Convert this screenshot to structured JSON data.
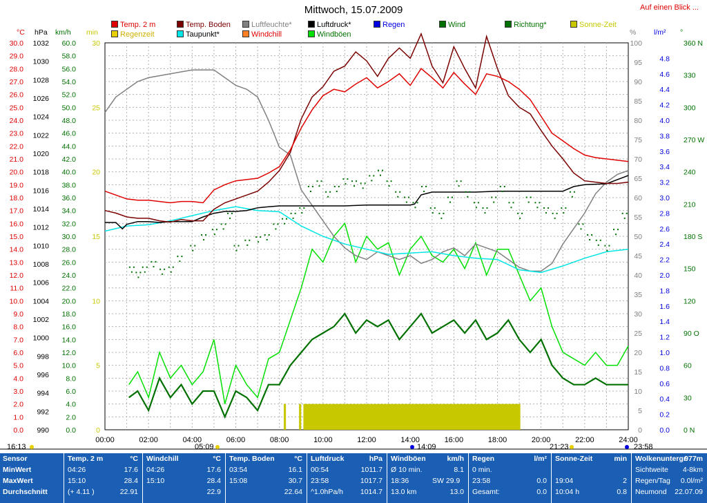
{
  "title": "Mittwoch, 15.07.2009",
  "link_label": "Auf einen Blick ...",
  "legend": [
    {
      "label": "Temp. 2 m",
      "color": "#e00000"
    },
    {
      "label": "Regenzeit",
      "color": "#e8d000"
    },
    {
      "label": "Temp. Boden",
      "color": "#7a0000"
    },
    {
      "label": "Taupunkt*",
      "color": "#00e5e5"
    },
    {
      "label": "Luftfeuchte*",
      "color": "#808080"
    },
    {
      "label": "Windchill",
      "color": "#ff7f27"
    },
    {
      "label": "Luftdruck*",
      "color": "#000000"
    },
    {
      "label": "Windböen",
      "color": "#00e000"
    },
    {
      "label": "Regen",
      "color": "#0000e0"
    },
    {
      "label": "Wind",
      "color": "#007000"
    },
    {
      "label": "Richtung*",
      "color": "#007000"
    },
    {
      "label": "Sonne-Zeit",
      "color": "#c8c800"
    }
  ],
  "axis_headers": {
    "celsius": "°C",
    "hpa": "hPa",
    "kmh": "km/h",
    "min": "min",
    "percent": "%",
    "lm2": "l/m²",
    "deg": "°"
  },
  "times": {
    "sunrise_left": "16:13",
    "sunrise": "05:09",
    "noon": "14:09",
    "sunset": "21:23",
    "moonset": "23:58"
  },
  "chart_data": {
    "type": "line",
    "title": "Mittwoch, 15.07.2009",
    "x_ticks": [
      "00:00",
      "02:00",
      "04:00",
      "06:00",
      "08:00",
      "10:00",
      "12:00",
      "14:00",
      "16:00",
      "18:00",
      "20:00",
      "22:00",
      "24:00"
    ],
    "axes": {
      "celsius": {
        "min": 0,
        "max": 30,
        "ticks": [
          "30.0",
          "29.0",
          "28.0",
          "27.0",
          "26.0",
          "25.0",
          "24.0",
          "23.0",
          "22.0",
          "21.0",
          "20.0",
          "19.0",
          "18.0",
          "17.0",
          "16.0",
          "15.0",
          "14.0",
          "13.0",
          "12.0",
          "11.0",
          "10.0",
          "9.0",
          "8.0",
          "7.0",
          "6.0",
          "5.0",
          "4.0",
          "3.0",
          "2.0",
          "1.0",
          "0.0"
        ]
      },
      "hpa": {
        "min": 990,
        "max": 1032,
        "ticks": [
          "1032",
          "1030",
          "1028",
          "1026",
          "1024",
          "1022",
          "1020",
          "1018",
          "1016",
          "1014",
          "1012",
          "1010",
          "1008",
          "1006",
          "1004",
          "1002",
          "1000",
          "998",
          "996",
          "994",
          "992",
          "990"
        ]
      },
      "kmh": {
        "min": 0,
        "max": 60,
        "ticks": [
          "60.0",
          "58.0",
          "56.0",
          "54.0",
          "52.0",
          "50.0",
          "48.0",
          "46.0",
          "44.0",
          "42.0",
          "40.0",
          "38.0",
          "36.0",
          "34.0",
          "32.0",
          "30.0",
          "28.0",
          "26.0",
          "24.0",
          "22.0",
          "20.0",
          "18.0",
          "16.0",
          "14.0",
          "12.0",
          "10.0",
          "8.0",
          "6.0",
          "4.0",
          "2.0",
          "0.0"
        ]
      },
      "min": {
        "min": 0,
        "max": 30,
        "ticks": [
          "30",
          "25",
          "20",
          "15",
          "10",
          "5",
          "0"
        ]
      },
      "percent": {
        "min": 0,
        "max": 100,
        "ticks": [
          "100",
          "95",
          "90",
          "85",
          "80",
          "75",
          "70",
          "65",
          "60",
          "55",
          "50",
          "45",
          "40",
          "35",
          "30",
          "25",
          "20",
          "15",
          "10",
          "5",
          "0"
        ]
      },
      "lm2": {
        "min": 0,
        "max": 5,
        "ticks": [
          "4.8",
          "4.6",
          "4.4",
          "4.2",
          "4.0",
          "3.8",
          "3.6",
          "3.4",
          "3.2",
          "3.0",
          "2.8",
          "2.6",
          "2.4",
          "2.2",
          "2.0",
          "1.8",
          "1.6",
          "1.4",
          "1.2",
          "1.0",
          "0.8",
          "0.6",
          "0.4",
          "0.2",
          "0.0"
        ]
      },
      "deg": {
        "min": 0,
        "max": 360,
        "ticks": [
          "360 N",
          "330",
          "300",
          "270 W",
          "240",
          "210",
          "180 S",
          "150",
          "120",
          "90 O",
          "60",
          "30",
          "0 N"
        ]
      }
    },
    "series": [
      {
        "name": "Temp. 2 m",
        "axis": "celsius",
        "color": "#e00000",
        "x": [
          0,
          0.5,
          1,
          1.5,
          2,
          2.5,
          3,
          3.5,
          4,
          4.5,
          5,
          5.5,
          6,
          6.5,
          7,
          7.5,
          8,
          8.5,
          9,
          9.5,
          10,
          10.5,
          11,
          11.5,
          12,
          12.5,
          13,
          13.5,
          14,
          14.5,
          15,
          15.5,
          16,
          16.5,
          17,
          17.5,
          18,
          18.5,
          19,
          19.5,
          20,
          20.5,
          21,
          21.5,
          22,
          22.5,
          23,
          23.5,
          24
        ],
        "y": [
          18.5,
          18.2,
          17.9,
          17.8,
          17.8,
          17.7,
          17.6,
          17.7,
          17.7,
          17.6,
          18.6,
          19.0,
          19.3,
          19.4,
          19.5,
          19.9,
          20.4,
          21.7,
          23.4,
          24.8,
          25.9,
          26.4,
          26.2,
          26.8,
          27.3,
          26.5,
          27.0,
          27.6,
          26.7,
          28.0,
          27.3,
          26.5,
          27.7,
          26.8,
          26.0,
          27.6,
          27.4,
          27.0,
          26.4,
          25.6,
          24.3,
          23.0,
          22.4,
          21.8,
          21.3,
          21.1,
          21.0,
          20.9,
          20.8
        ]
      },
      {
        "name": "Temp. Boden",
        "axis": "celsius",
        "color": "#7a0000",
        "x": [
          0,
          0.5,
          1,
          1.5,
          2,
          2.5,
          3,
          3.5,
          4,
          4.5,
          5,
          5.5,
          6,
          6.5,
          7,
          7.5,
          8,
          8.5,
          9,
          9.5,
          10,
          10.5,
          11,
          11.5,
          12,
          12.5,
          13,
          13.5,
          14,
          14.5,
          15,
          15.5,
          16,
          16.5,
          17,
          17.5,
          18,
          18.5,
          19,
          19.5,
          20,
          20.5,
          21,
          21.5,
          22,
          22.5,
          23,
          23.5,
          24
        ],
        "y": [
          17.0,
          16.8,
          16.5,
          16.4,
          16.4,
          16.2,
          16.1,
          16.3,
          16.2,
          16.2,
          17.1,
          17.6,
          17.9,
          18.2,
          18.5,
          19.2,
          20.1,
          21.5,
          24.1,
          25.8,
          26.6,
          27.8,
          28.2,
          29.3,
          28.6,
          27.4,
          28.8,
          29.6,
          28.8,
          30.7,
          28.2,
          26.9,
          29.7,
          28.0,
          26.5,
          30.5,
          28.0,
          25.9,
          25.0,
          24.5,
          23.2,
          22.0,
          21.0,
          19.9,
          19.3,
          19.2,
          19.1,
          19.1,
          19.2
        ]
      },
      {
        "name": "Taupunkt*",
        "axis": "celsius",
        "color": "#00e5e5",
        "x": [
          0,
          1,
          2,
          3,
          4,
          5,
          6,
          7,
          8,
          9,
          10,
          11,
          12,
          13,
          14,
          15,
          16,
          17,
          18,
          19,
          20,
          21,
          22,
          23,
          24
        ],
        "y": [
          15.4,
          15.8,
          15.9,
          16.2,
          16.6,
          17.0,
          17.3,
          17.0,
          16.9,
          15.8,
          15.0,
          14.4,
          14.0,
          13.6,
          13.7,
          13.8,
          13.5,
          13.3,
          13.2,
          12.4,
          12.2,
          12.7,
          13.3,
          13.8,
          14.0
        ]
      },
      {
        "name": "Luftfeuchte*",
        "axis": "percent",
        "color": "#808080",
        "x": [
          0,
          0.5,
          1,
          1.5,
          2,
          2.5,
          3,
          3.5,
          4,
          4.5,
          5,
          5.5,
          6,
          6.5,
          7,
          7.5,
          8,
          8.5,
          9,
          9.5,
          10,
          10.5,
          11,
          11.5,
          12,
          12.5,
          13,
          13.5,
          14,
          14.5,
          15,
          15.5,
          16,
          16.5,
          17,
          17.5,
          18,
          18.5,
          19,
          19.5,
          20,
          20.5,
          21,
          21.5,
          22,
          22.5,
          23,
          23.5,
          24
        ],
        "y": [
          82,
          86,
          88,
          90,
          91,
          91.5,
          92,
          92.5,
          93,
          93,
          93,
          91,
          89,
          88,
          86,
          80,
          73,
          71,
          62,
          58,
          54,
          50,
          47,
          45,
          44,
          46,
          45,
          44,
          45,
          43,
          44,
          46,
          47,
          45,
          48,
          47,
          46,
          44,
          42,
          41,
          41,
          43,
          48,
          52,
          56,
          61,
          64,
          66,
          67
        ]
      },
      {
        "name": "Luftdruck*",
        "axis": "hpa",
        "color": "#000000",
        "x": [
          0,
          0.5,
          0.8,
          1,
          1.5,
          2,
          2.5,
          3,
          3.5,
          4,
          4.5,
          5,
          5.5,
          6,
          6.5,
          7,
          7.5,
          8,
          8.5,
          9,
          10,
          11,
          12,
          13,
          14,
          14.2,
          14.5,
          15,
          16,
          17,
          18,
          19,
          20,
          21,
          21.5,
          22,
          23,
          24
        ],
        "y": [
          1012.5,
          1012.5,
          1011.8,
          1012.3,
          1012.6,
          1012.6,
          1012.5,
          1012.6,
          1012.6,
          1012.6,
          1013.1,
          1013.5,
          1013.7,
          1013.7,
          1013.8,
          1014.1,
          1014.2,
          1014.3,
          1014.3,
          1014.3,
          1014.3,
          1014.3,
          1014.4,
          1014.4,
          1014.4,
          1014.5,
          1015.5,
          1015.8,
          1015.8,
          1015.8,
          1015.9,
          1015.9,
          1015.9,
          1015.9,
          1016.4,
          1016.6,
          1016.7,
          1017.6
        ]
      },
      {
        "name": "Wind",
        "axis": "kmh",
        "color": "#007000",
        "x": [
          1.1,
          1.5,
          2,
          2.5,
          3,
          3.5,
          4,
          4.5,
          5,
          5.5,
          6,
          6.5,
          7,
          7.5,
          8,
          8.5,
          9,
          9.5,
          10,
          10.5,
          11,
          11.5,
          12,
          12.5,
          13,
          13.5,
          14,
          14.5,
          15,
          15.5,
          16,
          16.5,
          17,
          17.5,
          18,
          18.5,
          19,
          19.5,
          20,
          20.5,
          21,
          21.5,
          22,
          22.5,
          23,
          23.5,
          24
        ],
        "y": [
          5,
          6,
          3,
          8,
          5,
          7,
          4,
          6,
          6,
          2,
          6,
          5,
          3,
          7,
          7,
          10,
          12,
          14,
          15,
          16,
          18,
          15,
          17,
          16,
          17,
          14,
          16,
          18,
          15,
          16,
          17,
          15,
          17,
          14,
          15,
          17,
          14,
          12,
          14,
          10,
          8,
          7,
          7,
          8,
          7,
          7,
          7
        ]
      },
      {
        "name": "Windböen",
        "axis": "kmh",
        "color": "#00e000",
        "x": [
          1.1,
          1.5,
          2,
          2.5,
          3,
          3.5,
          4,
          4.5,
          5,
          5.5,
          6,
          6.5,
          7,
          7.5,
          8,
          8.5,
          9,
          9.5,
          10,
          10.5,
          11,
          11.5,
          12,
          12.5,
          13,
          13.5,
          14,
          14.5,
          15,
          15.5,
          16,
          16.5,
          17,
          17.5,
          18,
          18.5,
          19,
          19.5,
          20,
          20.5,
          21,
          21.5,
          22,
          22.5,
          23,
          23.5,
          24
        ],
        "y": [
          7,
          9,
          5,
          12,
          8,
          10,
          7,
          9,
          14,
          4,
          10,
          7,
          5,
          11,
          12,
          17,
          22,
          28,
          26,
          30,
          32,
          26,
          30,
          28,
          29,
          24,
          28,
          30,
          27,
          26,
          28,
          25,
          29,
          24,
          28,
          28,
          24,
          20,
          22,
          16,
          12,
          11,
          10,
          12,
          10,
          10,
          13
        ]
      },
      {
        "name": "Sonne-Zeit",
        "axis": "min",
        "color": "#c8c800",
        "type": "bar",
        "ranges": [
          [
            8.2,
            8.3
          ],
          [
            8.9,
            9.0
          ],
          [
            9.1,
            19.05
          ]
        ],
        "value": 2
      }
    ],
    "direction_points": {
      "axis": "deg",
      "color": "#007000",
      "x": [
        1.2,
        1.5,
        1.8,
        2.2,
        2.6,
        3.0,
        3.4,
        4.0,
        4.5,
        5.0,
        5.4,
        5.7,
        6.0,
        6.5,
        7.0,
        7.4,
        7.8,
        8.2,
        8.6,
        9.0,
        9.4,
        9.8,
        10.2,
        10.6,
        11.0,
        11.4,
        11.8,
        12.2,
        12.6,
        13.0,
        13.4,
        13.8,
        14.2,
        14.6,
        15.0,
        15.4,
        15.8,
        16.2,
        16.6,
        17.0,
        17.4,
        17.8,
        18.2,
        18.6,
        19.0,
        19.4,
        19.8,
        20.2,
        20.6,
        21.0,
        21.4,
        21.8,
        22.2,
        22.6,
        23.0,
        23.4,
        23.8
      ],
      "y": [
        150,
        145,
        150,
        155,
        148,
        150,
        160,
        170,
        180,
        185,
        190,
        200,
        170,
        175,
        178,
        180,
        190,
        195,
        200,
        205,
        225,
        230,
        220,
        225,
        232,
        230,
        228,
        235,
        240,
        230,
        220,
        215,
        210,
        225,
        205,
        200,
        215,
        230,
        220,
        210,
        205,
        215,
        225,
        210,
        200,
        215,
        210,
        205,
        200,
        205,
        220,
        190,
        180,
        175,
        170,
        185,
        200
      ]
    },
    "ylabel": ""
  },
  "table": {
    "rowlabels": {
      "header": "Sensor",
      "min": "MinWert",
      "max": "MaxWert",
      "avg": "Durchschnitt"
    },
    "cols": [
      {
        "h1": "Temp. 2 m",
        "h2": "°C",
        "r1a": "04:26",
        "r1b": "17.6",
        "r2a": "15:10",
        "r2b": "28.4",
        "r3a": "(+ 4.11 )",
        "r3b": "22.91"
      },
      {
        "h1": "Windchill",
        "h2": "°C",
        "r1a": "04:26",
        "r1b": "17.6",
        "r2a": "15:10",
        "r2b": "28.4",
        "r3a": "",
        "r3b": "22.9"
      },
      {
        "h1": "Temp. Boden",
        "h2": "°C",
        "r1a": "03:54",
        "r1b": "16.1",
        "r2a": "15:08",
        "r2b": "30.7",
        "r3a": "",
        "r3b": "22.64"
      },
      {
        "h1": "Luftdruck",
        "h2": "hPa",
        "r1a": "00:54",
        "r1b": "1011.7",
        "r2a": "23:58",
        "r2b": "1017.7",
        "r3a": "^1.0hPa/h",
        "r3b": "1014.7"
      },
      {
        "h1": "Windböen",
        "h2": "km/h",
        "r1a": "Ø 10 min.",
        "r1b": "8.1",
        "r2a": "18:36",
        "r2m": "SW 29.9",
        "r2b": "",
        "r3a": "13.0 km",
        "r3b": "13.0"
      },
      {
        "h1": "Regen",
        "h2": "l/m²",
        "r1a": "0 min.",
        "r1b": "",
        "r2a": "23:58",
        "r2b": "0.0",
        "r3a": "Gesamt:",
        "r3b": "0.0"
      },
      {
        "h1": "Sonne-Zeit",
        "h2": "min",
        "r1a": "",
        "r1b": "",
        "r2a": "19:04",
        "r2b": "2",
        "r3a": "10:04 h",
        "r3b": "0.8"
      },
      {
        "h1": "Wolkenuntergr.",
        "h2": "977m",
        "r1a": "Sichtweite",
        "r1b": "4-8km",
        "r2a": "Regen/Tag",
        "r2b": "0.0l/m²",
        "r3a": "Neumond",
        "r3b": "22.07.09"
      }
    ]
  }
}
